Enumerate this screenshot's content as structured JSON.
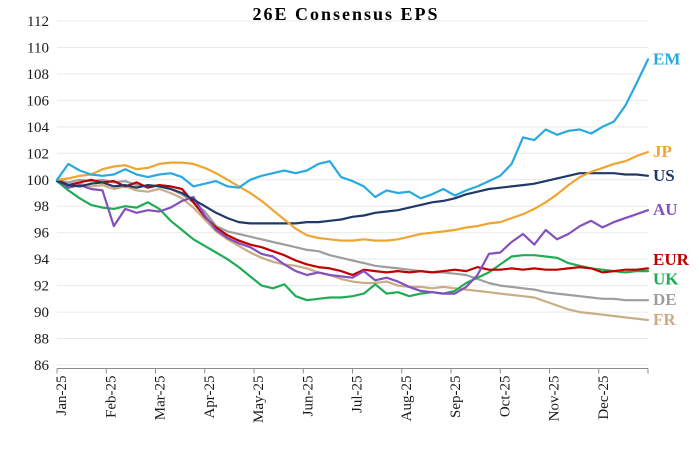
{
  "title": "26E Consensus EPS",
  "colors": {
    "background": "#FFFFFF",
    "grid": "#E9E9E9",
    "axis": "#8C8C8C",
    "tick_text": "#1A1A1A"
  },
  "chart_data": {
    "type": "line",
    "title": "26E Consensus EPS",
    "grid": "horizontal-light",
    "legend_position": "right-edge-colored-labels",
    "x_frequency": "weekly",
    "xlabel": "",
    "ylabel": "",
    "ylim": [
      86,
      112
    ],
    "y_ticks": [
      86,
      88,
      90,
      92,
      94,
      96,
      98,
      100,
      102,
      104,
      106,
      108,
      110,
      112
    ],
    "x_tick_labels": [
      "Jan-25",
      "Feb-25",
      "Mar-25",
      "Apr-25",
      "May-25",
      "Jun-25",
      "Jul-25",
      "Aug-25",
      "Sep-25",
      "Oct-25",
      "Nov-25",
      "Dec-25"
    ],
    "series": [
      {
        "name": "EM",
        "color": "#27AAE1",
        "values": [
          100.0,
          101.2,
          100.7,
          100.4,
          100.3,
          100.4,
          100.8,
          100.4,
          100.2,
          100.4,
          100.5,
          100.2,
          99.5,
          99.7,
          99.9,
          99.5,
          99.4,
          100.0,
          100.3,
          100.5,
          100.7,
          100.5,
          100.7,
          101.2,
          101.4,
          100.2,
          99.9,
          99.5,
          98.7,
          99.2,
          99.0,
          99.1,
          98.6,
          98.9,
          99.3,
          98.8,
          99.2,
          99.5,
          99.9,
          100.3,
          101.2,
          103.2,
          103.0,
          103.8,
          103.4,
          103.7,
          103.8,
          103.5,
          104.0,
          104.4,
          105.6,
          107.3,
          109.1
        ]
      },
      {
        "name": "JP",
        "color": "#EFA52F",
        "values": [
          100.0,
          100.1,
          100.3,
          100.4,
          100.8,
          101.0,
          101.1,
          100.8,
          100.9,
          101.2,
          101.3,
          101.3,
          101.2,
          100.9,
          100.5,
          100.0,
          99.5,
          99.0,
          98.4,
          97.7,
          97.0,
          96.3,
          95.8,
          95.6,
          95.5,
          95.4,
          95.4,
          95.5,
          95.4,
          95.4,
          95.5,
          95.7,
          95.9,
          96.0,
          96.1,
          96.2,
          96.4,
          96.5,
          96.7,
          96.8,
          97.1,
          97.4,
          97.8,
          98.3,
          98.9,
          99.6,
          100.2,
          100.6,
          100.9,
          101.2,
          101.4,
          101.8,
          102.1
        ]
      },
      {
        "name": "US",
        "color": "#1F3A68",
        "values": [
          99.9,
          99.6,
          99.5,
          99.7,
          99.8,
          99.5,
          99.6,
          99.4,
          99.6,
          99.5,
          99.3,
          99.0,
          98.5,
          98.0,
          97.5,
          97.1,
          96.8,
          96.7,
          96.7,
          96.7,
          96.7,
          96.7,
          96.8,
          96.8,
          96.9,
          97.0,
          97.2,
          97.3,
          97.5,
          97.6,
          97.7,
          97.9,
          98.1,
          98.3,
          98.4,
          98.6,
          98.9,
          99.1,
          99.3,
          99.4,
          99.5,
          99.6,
          99.7,
          99.9,
          100.1,
          100.3,
          100.5,
          100.5,
          100.5,
          100.5,
          100.4,
          100.4,
          100.3
        ]
      },
      {
        "name": "AU",
        "color": "#8450BE",
        "values": [
          100.0,
          99.4,
          99.6,
          99.3,
          99.2,
          96.5,
          97.8,
          97.5,
          97.7,
          97.6,
          97.9,
          98.4,
          98.7,
          97.3,
          96.2,
          95.6,
          95.2,
          94.9,
          94.4,
          94.2,
          93.6,
          93.1,
          92.8,
          93.0,
          92.8,
          92.7,
          92.6,
          93.1,
          92.4,
          92.6,
          92.3,
          91.9,
          91.6,
          91.5,
          91.4,
          91.4,
          91.9,
          92.8,
          94.4,
          94.5,
          95.3,
          95.9,
          95.1,
          96.2,
          95.5,
          95.9,
          96.5,
          96.9,
          96.4,
          96.8,
          97.1,
          97.4,
          97.7
        ]
      },
      {
        "name": "EUR",
        "color": "#C00000",
        "values": [
          100.0,
          99.6,
          99.8,
          100.0,
          99.8,
          99.9,
          99.5,
          99.8,
          99.4,
          99.6,
          99.5,
          99.3,
          98.3,
          97.2,
          96.4,
          95.8,
          95.4,
          95.1,
          94.9,
          94.6,
          94.3,
          93.9,
          93.6,
          93.4,
          93.3,
          93.1,
          92.8,
          93.2,
          93.1,
          93.0,
          93.1,
          93.0,
          93.1,
          93.0,
          93.1,
          93.2,
          93.1,
          93.4,
          93.2,
          93.2,
          93.3,
          93.2,
          93.3,
          93.2,
          93.2,
          93.3,
          93.4,
          93.3,
          93.0,
          93.1,
          93.2,
          93.2,
          93.3
        ]
      },
      {
        "name": "UK",
        "color": "#1FAC54",
        "values": [
          99.9,
          99.2,
          98.6,
          98.1,
          97.9,
          97.8,
          98.0,
          97.9,
          98.3,
          97.8,
          96.9,
          96.2,
          95.5,
          95.0,
          94.5,
          94.0,
          93.4,
          92.7,
          92.0,
          91.8,
          92.1,
          91.2,
          90.9,
          91.0,
          91.1,
          91.1,
          91.2,
          91.4,
          92.1,
          91.4,
          91.5,
          91.2,
          91.4,
          91.5,
          91.4,
          91.6,
          92.2,
          92.6,
          93.0,
          93.6,
          94.2,
          94.3,
          94.3,
          94.2,
          94.1,
          93.7,
          93.5,
          93.3,
          93.2,
          93.1,
          93.0,
          93.1,
          93.1
        ]
      },
      {
        "name": "DE",
        "color": "#9E9E9E",
        "values": [
          100.0,
          99.8,
          100.0,
          99.9,
          100.0,
          99.8,
          99.9,
          99.6,
          99.5,
          99.6,
          99.3,
          98.9,
          98.3,
          97.6,
          96.5,
          96.1,
          95.9,
          95.7,
          95.5,
          95.3,
          95.1,
          94.9,
          94.7,
          94.6,
          94.3,
          94.1,
          93.9,
          93.7,
          93.5,
          93.4,
          93.3,
          93.2,
          93.1,
          93.0,
          93.0,
          92.9,
          92.8,
          92.5,
          92.2,
          92.0,
          91.9,
          91.8,
          91.7,
          91.5,
          91.4,
          91.3,
          91.2,
          91.1,
          91.0,
          91.0,
          90.9,
          90.9,
          90.9
        ]
      },
      {
        "name": "FR",
        "color": "#C8AD85",
        "values": [
          99.9,
          99.5,
          99.7,
          99.5,
          99.6,
          99.3,
          99.5,
          99.2,
          99.1,
          99.3,
          99.0,
          98.6,
          97.9,
          97.0,
          96.1,
          95.5,
          95.0,
          94.5,
          94.1,
          93.8,
          93.6,
          93.5,
          93.3,
          93.0,
          92.8,
          92.5,
          92.3,
          92.2,
          92.2,
          92.3,
          92.0,
          91.9,
          91.9,
          91.8,
          91.9,
          91.8,
          91.7,
          91.6,
          91.5,
          91.4,
          91.3,
          91.2,
          91.1,
          90.8,
          90.5,
          90.2,
          90.0,
          89.9,
          89.8,
          89.7,
          89.6,
          89.5,
          89.4
        ]
      }
    ]
  }
}
